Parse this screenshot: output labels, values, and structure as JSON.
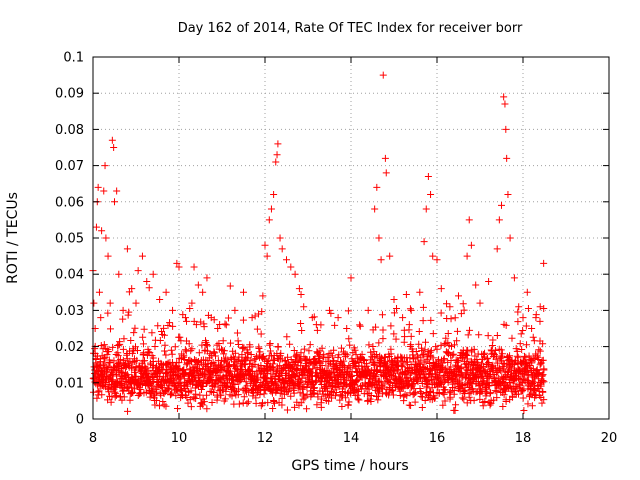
{
  "chart_data": {
    "type": "scatter",
    "title": "Day 162 of 2014, Rate Of TEC Index for receiver borr",
    "xlabel": "GPS time / hours",
    "ylabel": "ROTI / TECUs",
    "xlim": [
      8,
      20
    ],
    "ylim": [
      0,
      0.1
    ],
    "grid": true,
    "marker": "+",
    "color": "#ff0000",
    "x_ticks": [
      {
        "value": 8,
        "label": "8"
      },
      {
        "value": 10,
        "label": "10"
      },
      {
        "value": 12,
        "label": "12"
      },
      {
        "value": 14,
        "label": "14"
      },
      {
        "value": 16,
        "label": "16"
      },
      {
        "value": 18,
        "label": "18"
      },
      {
        "value": 20,
        "label": "20"
      }
    ],
    "y_ticks": [
      {
        "value": 0,
        "label": "0"
      },
      {
        "value": 0.01,
        "label": "0.01"
      },
      {
        "value": 0.02,
        "label": "0.02"
      },
      {
        "value": 0.03,
        "label": "0.03"
      },
      {
        "value": 0.04,
        "label": "0.04"
      },
      {
        "value": 0.05,
        "label": "0.05"
      },
      {
        "value": 0.06,
        "label": "0.06"
      },
      {
        "value": 0.07,
        "label": "0.07"
      },
      {
        "value": 0.08,
        "label": "0.08"
      },
      {
        "value": 0.09,
        "label": "0.09"
      },
      {
        "value": 0.1,
        "label": "0.1"
      }
    ],
    "series": [
      {
        "name": "ROTI",
        "points": [
          {
            "x": 8.0,
            "y": 0.041
          },
          {
            "x": 8.02,
            "y": 0.032
          },
          {
            "x": 8.05,
            "y": 0.025
          },
          {
            "x": 8.08,
            "y": 0.053
          },
          {
            "x": 8.1,
            "y": 0.06
          },
          {
            "x": 8.12,
            "y": 0.064
          },
          {
            "x": 8.15,
            "y": 0.035
          },
          {
            "x": 8.18,
            "y": 0.028
          },
          {
            "x": 8.2,
            "y": 0.052
          },
          {
            "x": 8.25,
            "y": 0.063
          },
          {
            "x": 8.28,
            "y": 0.07
          },
          {
            "x": 8.3,
            "y": 0.05
          },
          {
            "x": 8.35,
            "y": 0.045
          },
          {
            "x": 8.4,
            "y": 0.032
          },
          {
            "x": 8.45,
            "y": 0.077
          },
          {
            "x": 8.48,
            "y": 0.075
          },
          {
            "x": 8.5,
            "y": 0.06
          },
          {
            "x": 8.55,
            "y": 0.063
          },
          {
            "x": 8.6,
            "y": 0.04
          },
          {
            "x": 8.7,
            "y": 0.03
          },
          {
            "x": 8.8,
            "y": 0.047
          },
          {
            "x": 8.9,
            "y": 0.036
          },
          {
            "x": 9.0,
            "y": 0.032
          },
          {
            "x": 9.05,
            "y": 0.041
          },
          {
            "x": 9.15,
            "y": 0.045
          },
          {
            "x": 9.25,
            "y": 0.038
          },
          {
            "x": 9.4,
            "y": 0.04
          },
          {
            "x": 9.55,
            "y": 0.033
          },
          {
            "x": 9.7,
            "y": 0.035
          },
          {
            "x": 9.85,
            "y": 0.03
          },
          {
            "x": 9.95,
            "y": 0.043
          },
          {
            "x": 10.0,
            "y": 0.042
          },
          {
            "x": 10.15,
            "y": 0.028
          },
          {
            "x": 10.3,
            "y": 0.032
          },
          {
            "x": 10.35,
            "y": 0.042
          },
          {
            "x": 10.45,
            "y": 0.037
          },
          {
            "x": 10.55,
            "y": 0.035
          },
          {
            "x": 10.65,
            "y": 0.039
          },
          {
            "x": 10.75,
            "y": 0.028
          },
          {
            "x": 10.9,
            "y": 0.025
          },
          {
            "x": 11.1,
            "y": 0.026
          },
          {
            "x": 11.3,
            "y": 0.03
          },
          {
            "x": 11.5,
            "y": 0.035
          },
          {
            "x": 11.7,
            "y": 0.028
          },
          {
            "x": 11.85,
            "y": 0.029
          },
          {
            "x": 11.95,
            "y": 0.034
          },
          {
            "x": 12.0,
            "y": 0.048
          },
          {
            "x": 12.05,
            "y": 0.045
          },
          {
            "x": 12.1,
            "y": 0.055
          },
          {
            "x": 12.15,
            "y": 0.058
          },
          {
            "x": 12.2,
            "y": 0.062
          },
          {
            "x": 12.25,
            "y": 0.071
          },
          {
            "x": 12.28,
            "y": 0.073
          },
          {
            "x": 12.3,
            "y": 0.076
          },
          {
            "x": 12.35,
            "y": 0.05
          },
          {
            "x": 12.4,
            "y": 0.047
          },
          {
            "x": 12.5,
            "y": 0.044
          },
          {
            "x": 12.6,
            "y": 0.042
          },
          {
            "x": 12.7,
            "y": 0.04
          },
          {
            "x": 12.8,
            "y": 0.036
          },
          {
            "x": 12.9,
            "y": 0.031
          },
          {
            "x": 13.1,
            "y": 0.028
          },
          {
            "x": 13.3,
            "y": 0.026
          },
          {
            "x": 13.5,
            "y": 0.03
          },
          {
            "x": 13.7,
            "y": 0.028
          },
          {
            "x": 13.9,
            "y": 0.025
          },
          {
            "x": 14.0,
            "y": 0.039
          },
          {
            "x": 14.2,
            "y": 0.026
          },
          {
            "x": 14.4,
            "y": 0.03
          },
          {
            "x": 14.55,
            "y": 0.058
          },
          {
            "x": 14.6,
            "y": 0.064
          },
          {
            "x": 14.65,
            "y": 0.05
          },
          {
            "x": 14.7,
            "y": 0.044
          },
          {
            "x": 14.75,
            "y": 0.095
          },
          {
            "x": 14.8,
            "y": 0.072
          },
          {
            "x": 14.82,
            "y": 0.068
          },
          {
            "x": 14.9,
            "y": 0.045
          },
          {
            "x": 15.0,
            "y": 0.033
          },
          {
            "x": 15.2,
            "y": 0.028
          },
          {
            "x": 15.4,
            "y": 0.03
          },
          {
            "x": 15.6,
            "y": 0.035
          },
          {
            "x": 15.7,
            "y": 0.049
          },
          {
            "x": 15.75,
            "y": 0.058
          },
          {
            "x": 15.8,
            "y": 0.067
          },
          {
            "x": 15.85,
            "y": 0.062
          },
          {
            "x": 15.9,
            "y": 0.045
          },
          {
            "x": 16.0,
            "y": 0.044
          },
          {
            "x": 16.1,
            "y": 0.036
          },
          {
            "x": 16.3,
            "y": 0.031
          },
          {
            "x": 16.5,
            "y": 0.034
          },
          {
            "x": 16.7,
            "y": 0.045
          },
          {
            "x": 16.75,
            "y": 0.055
          },
          {
            "x": 16.8,
            "y": 0.048
          },
          {
            "x": 16.9,
            "y": 0.037
          },
          {
            "x": 17.0,
            "y": 0.032
          },
          {
            "x": 17.2,
            "y": 0.038
          },
          {
            "x": 17.4,
            "y": 0.047
          },
          {
            "x": 17.45,
            "y": 0.055
          },
          {
            "x": 17.5,
            "y": 0.059
          },
          {
            "x": 17.55,
            "y": 0.089
          },
          {
            "x": 17.58,
            "y": 0.087
          },
          {
            "x": 17.6,
            "y": 0.08
          },
          {
            "x": 17.62,
            "y": 0.072
          },
          {
            "x": 17.65,
            "y": 0.062
          },
          {
            "x": 17.7,
            "y": 0.05
          },
          {
            "x": 17.8,
            "y": 0.039
          },
          {
            "x": 17.9,
            "y": 0.031
          },
          {
            "x": 18.0,
            "y": 0.028
          },
          {
            "x": 18.1,
            "y": 0.035
          },
          {
            "x": 18.2,
            "y": 0.025
          },
          {
            "x": 18.3,
            "y": 0.028
          },
          {
            "x": 18.4,
            "y": 0.031
          },
          {
            "x": 18.48,
            "y": 0.043
          }
        ]
      }
    ],
    "dense_band": {
      "description": "dense cloud of background samples",
      "x_range": [
        8.0,
        18.5
      ],
      "step_hours": 0.012,
      "samples_per_step": 3,
      "y_mean": 0.012,
      "y_spread": 0.007,
      "y_min": 0.002
    }
  }
}
